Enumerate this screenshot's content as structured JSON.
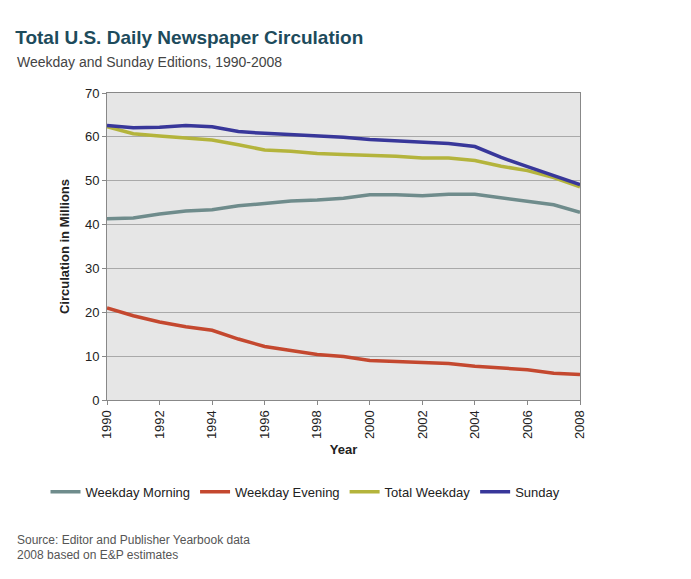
{
  "chart_data": {
    "type": "line",
    "title": "Total U.S. Daily Newspaper Circulation",
    "subtitle": "Weekday and Sunday Editions, 1990-2008",
    "x_label": "Year",
    "y_label": "Circulation in Millions",
    "annotations": [
      "Source: Editor and Publisher Yearbook data",
      "2008 based on E&P estimates"
    ],
    "x": [
      1990,
      1991,
      1992,
      1993,
      1994,
      1995,
      1996,
      1997,
      1998,
      1999,
      2000,
      2001,
      2002,
      2003,
      2004,
      2005,
      2006,
      2007,
      2008
    ],
    "series": [
      {
        "name": "Weekday Morning",
        "color": "#6f8c8c",
        "values": [
          41.3,
          41.5,
          42.4,
          43.1,
          43.4,
          44.3,
          44.8,
          45.4,
          45.6,
          46.0,
          46.8,
          46.8,
          46.6,
          46.9,
          46.9,
          46.1,
          45.4,
          44.5,
          42.8
        ]
      },
      {
        "name": "Weekday Evening",
        "color": "#c4482f",
        "values": [
          21.0,
          19.2,
          17.8,
          16.7,
          15.9,
          13.9,
          12.2,
          11.3,
          10.4,
          9.9,
          9.0,
          8.8,
          8.6,
          8.3,
          7.7,
          7.2,
          6.9,
          6.1,
          5.8
        ]
      },
      {
        "name": "Total Weekday",
        "color": "#b4b43c",
        "values": [
          62.3,
          60.7,
          60.2,
          59.8,
          59.3,
          58.2,
          57.0,
          56.7,
          56.2,
          56.0,
          55.8,
          55.6,
          55.2,
          55.2,
          54.6,
          53.3,
          52.3,
          50.7,
          48.6
        ]
      },
      {
        "name": "Sunday",
        "color": "#38379a",
        "values": [
          62.6,
          62.1,
          62.2,
          62.6,
          62.3,
          61.2,
          60.8,
          60.5,
          60.1,
          59.9,
          59.4,
          59.1,
          58.8,
          58.5,
          57.8,
          55.3,
          53.2,
          51.2,
          49.1
        ]
      }
    ],
    "xlim": [
      1990,
      2008
    ],
    "xticks": [
      1990,
      1992,
      1994,
      1996,
      1998,
      2000,
      2002,
      2004,
      2006,
      2008
    ],
    "ylim": [
      0,
      70
    ],
    "yticks": [
      0,
      10,
      20,
      30,
      40,
      50,
      60,
      70
    ],
    "grid": true,
    "legend": "bottom"
  }
}
